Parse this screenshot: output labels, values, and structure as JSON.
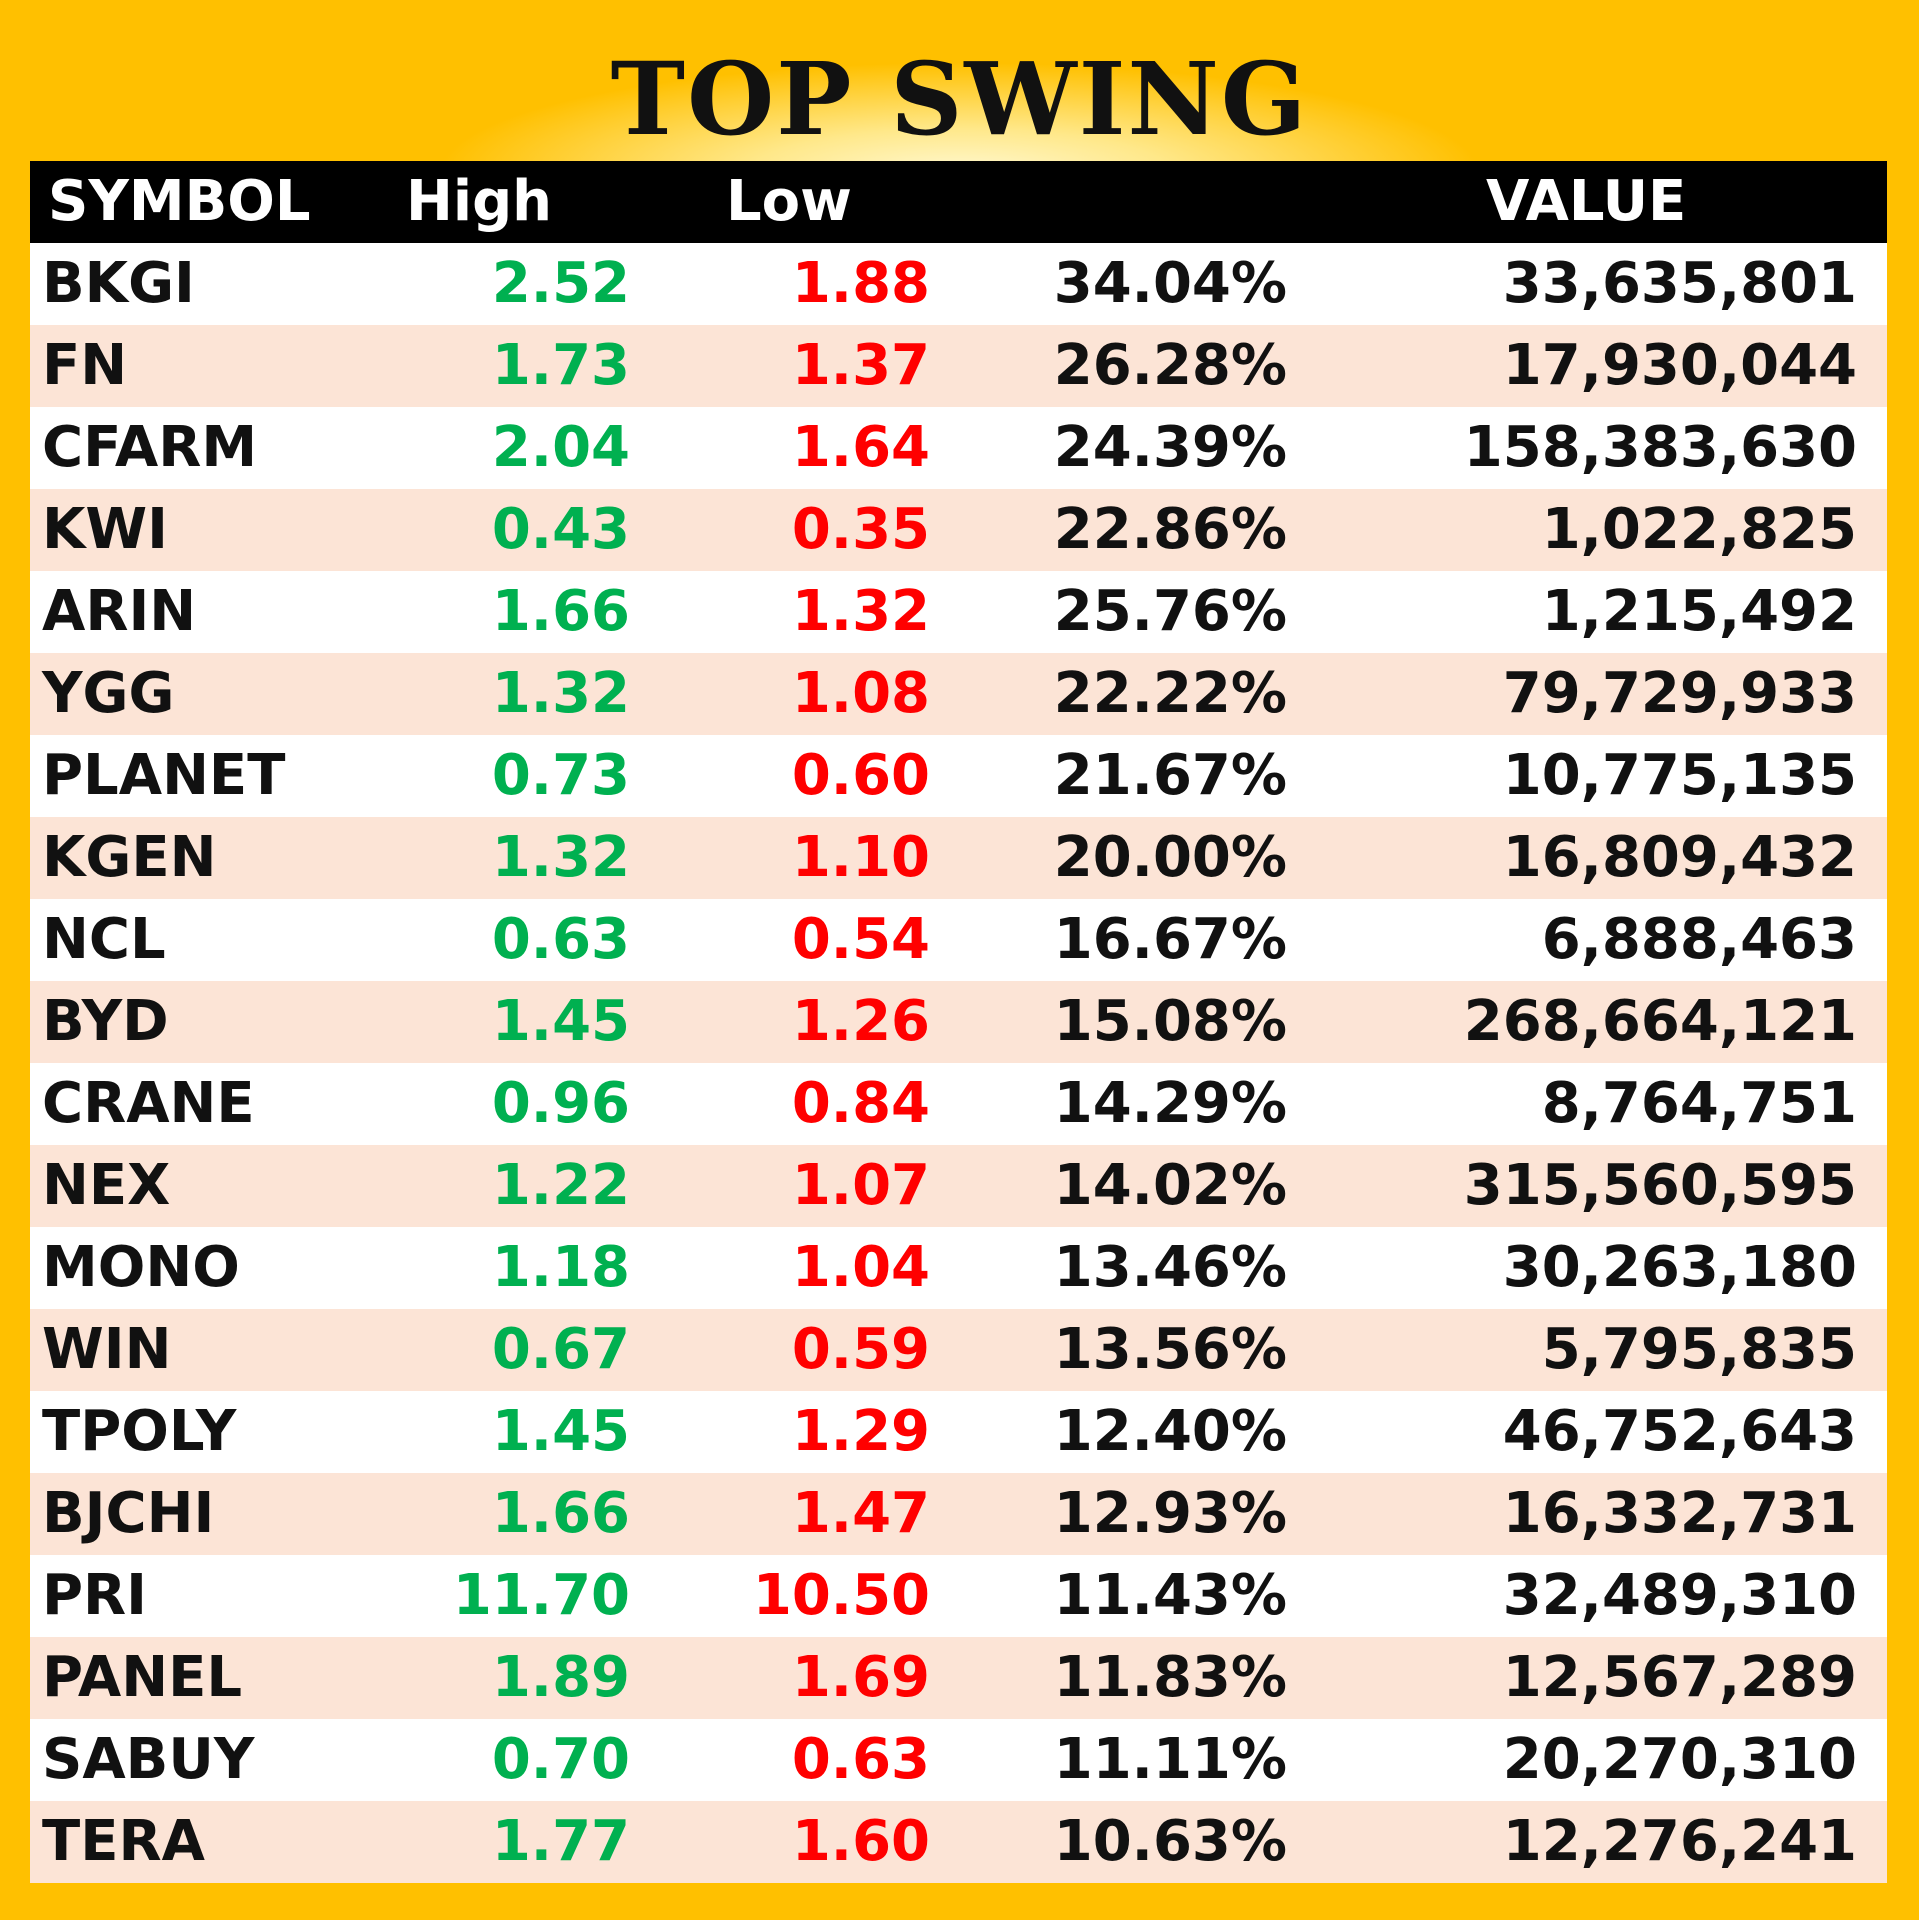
{
  "title": "TOP SWING",
  "columns": {
    "symbol": "SYMBOL",
    "high": "High",
    "low": "Low",
    "change": "",
    "value": "VALUE"
  },
  "colors": {
    "background": "#ffc000",
    "header_bg": "#000000",
    "high": "#00b050",
    "low": "#ff0000",
    "stripe": "#fce4d6"
  },
  "rows": [
    {
      "symbol": "BKGI",
      "high": "2.52",
      "low": "1.88",
      "change": "34.04%",
      "value": "33,635,801"
    },
    {
      "symbol": "FN",
      "high": "1.73",
      "low": "1.37",
      "change": "26.28%",
      "value": "17,930,044"
    },
    {
      "symbol": "CFARM",
      "high": "2.04",
      "low": "1.64",
      "change": "24.39%",
      "value": "158,383,630"
    },
    {
      "symbol": "KWI",
      "high": "0.43",
      "low": "0.35",
      "change": "22.86%",
      "value": "1,022,825"
    },
    {
      "symbol": "ARIN",
      "high": "1.66",
      "low": "1.32",
      "change": "25.76%",
      "value": "1,215,492"
    },
    {
      "symbol": "YGG",
      "high": "1.32",
      "low": "1.08",
      "change": "22.22%",
      "value": "79,729,933"
    },
    {
      "symbol": "PLANET",
      "high": "0.73",
      "low": "0.60",
      "change": "21.67%",
      "value": "10,775,135"
    },
    {
      "symbol": "KGEN",
      "high": "1.32",
      "low": "1.10",
      "change": "20.00%",
      "value": "16,809,432"
    },
    {
      "symbol": "NCL",
      "high": "0.63",
      "low": "0.54",
      "change": "16.67%",
      "value": "6,888,463"
    },
    {
      "symbol": "BYD",
      "high": "1.45",
      "low": "1.26",
      "change": "15.08%",
      "value": "268,664,121"
    },
    {
      "symbol": "CRANE",
      "high": "0.96",
      "low": "0.84",
      "change": "14.29%",
      "value": "8,764,751"
    },
    {
      "symbol": "NEX",
      "high": "1.22",
      "low": "1.07",
      "change": "14.02%",
      "value": "315,560,595"
    },
    {
      "symbol": "MONO",
      "high": "1.18",
      "low": "1.04",
      "change": "13.46%",
      "value": "30,263,180"
    },
    {
      "symbol": "WIN",
      "high": "0.67",
      "low": "0.59",
      "change": "13.56%",
      "value": "5,795,835"
    },
    {
      "symbol": "TPOLY",
      "high": "1.45",
      "low": "1.29",
      "change": "12.40%",
      "value": "46,752,643"
    },
    {
      "symbol": "BJCHI",
      "high": "1.66",
      "low": "1.47",
      "change": "12.93%",
      "value": "16,332,731"
    },
    {
      "symbol": "PRI",
      "high": "11.70",
      "low": "10.50",
      "change": "11.43%",
      "value": "32,489,310"
    },
    {
      "symbol": "PANEL",
      "high": "1.89",
      "low": "1.69",
      "change": "11.83%",
      "value": "12,567,289"
    },
    {
      "symbol": "SABUY",
      "high": "0.70",
      "low": "0.63",
      "change": "11.11%",
      "value": "20,270,310"
    },
    {
      "symbol": "TERA",
      "high": "1.77",
      "low": "1.60",
      "change": "10.63%",
      "value": "12,276,241"
    }
  ]
}
